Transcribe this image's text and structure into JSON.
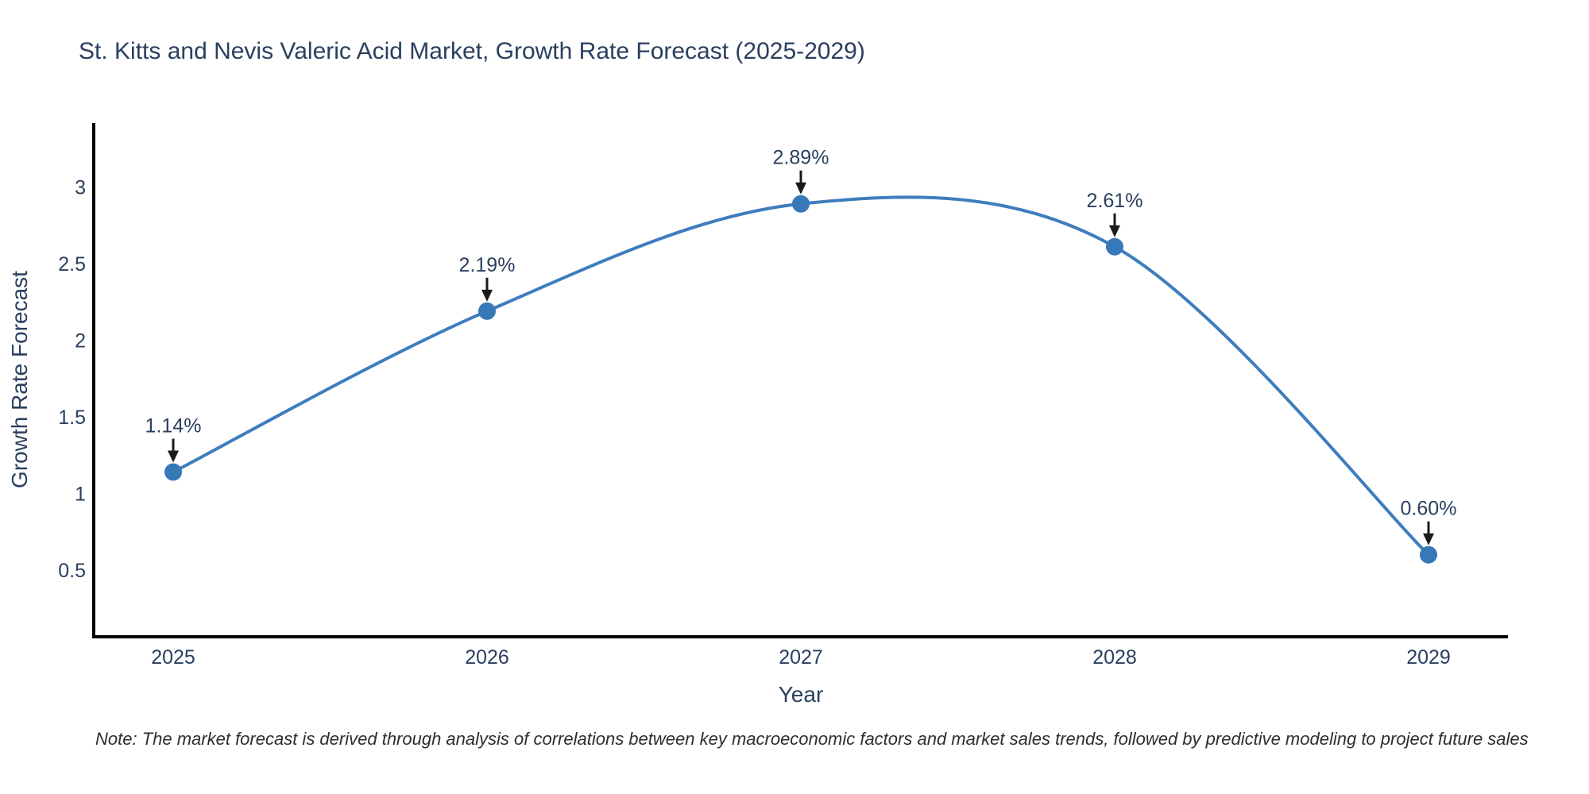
{
  "figure": {
    "title": "St. Kitts and Nevis Valeric Acid Market, Growth Rate Forecast (2025-2029)",
    "note": "Note: The market forecast is derived through analysis of correlations between key macroeconomic factors and market sales trends, followed by predictive modeling to project future sales"
  },
  "chart_data": {
    "type": "line",
    "title": "St. Kitts and Nevis Valeric Acid Market, Growth Rate Forecast (2025-2029)",
    "xlabel": "Year",
    "ylabel": "Growth Rate Forecast",
    "categories": [
      2025,
      2026,
      2027,
      2028,
      2029
    ],
    "values": [
      1.14,
      2.19,
      2.89,
      2.61,
      0.6
    ],
    "point_labels": [
      "1.14%",
      "2.19%",
      "2.89%",
      "2.61%",
      "0.60%"
    ],
    "yticks": [
      0.5,
      1,
      1.5,
      2,
      2.5,
      3
    ],
    "ylim": [
      0.07,
      3.42
    ],
    "line_shape": "spline",
    "grid": false,
    "legend": "none",
    "colors": {
      "line": "#3e7dbd",
      "marker": "#3678b8",
      "text": "#2a3f5f",
      "axis": "#000000",
      "arrow": "#1a1a1a",
      "background": "#ffffff"
    }
  }
}
